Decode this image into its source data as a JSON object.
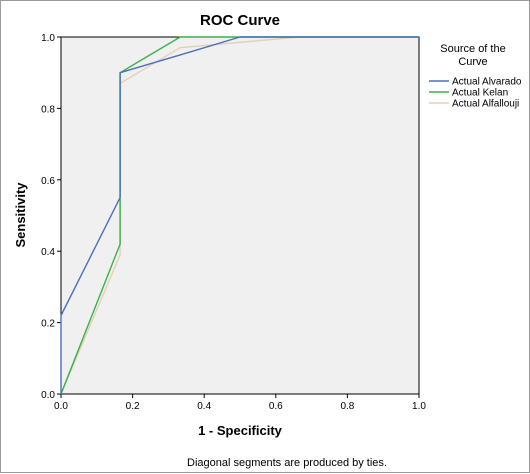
{
  "chart_data": {
    "type": "line",
    "title": "ROC Curve",
    "xlabel": "1 - Specificity",
    "ylabel": "Sensitivity",
    "xlim": [
      0,
      1
    ],
    "ylim": [
      0,
      1
    ],
    "xticks": [
      "0.0",
      "0.2",
      "0.4",
      "0.6",
      "0.8",
      "1.0"
    ],
    "yticks": [
      "0.0",
      "0.2",
      "0.4",
      "0.6",
      "0.8",
      "1.0"
    ],
    "grid": false,
    "legend": {
      "title_line1": "Source of the",
      "title_line2": "Curve",
      "position": "right"
    },
    "footnote": "Diagonal segments are produced by ties.",
    "series": [
      {
        "name": "Actual Alvarado",
        "color": "#4a6fbf",
        "points": [
          [
            0,
            0
          ],
          [
            0,
            0.22
          ],
          [
            0.165,
            0.55
          ],
          [
            0.165,
            0.9
          ],
          [
            0.333,
            0.95
          ],
          [
            0.5,
            1.0
          ],
          [
            1.0,
            1.0
          ]
        ]
      },
      {
        "name": "Actual Kelan",
        "color": "#3cb04a",
        "points": [
          [
            0,
            0
          ],
          [
            0.165,
            0.42
          ],
          [
            0.165,
            0.9
          ],
          [
            0.333,
            1.0
          ],
          [
            1.0,
            1.0
          ]
        ]
      },
      {
        "name": "Actual Alfallouji",
        "color": "#e2d2b4",
        "points": [
          [
            0,
            0
          ],
          [
            0.165,
            0.39
          ],
          [
            0.165,
            0.87
          ],
          [
            0.333,
            0.97
          ],
          [
            0.667,
            1.0
          ],
          [
            1.0,
            1.0
          ]
        ]
      }
    ]
  }
}
